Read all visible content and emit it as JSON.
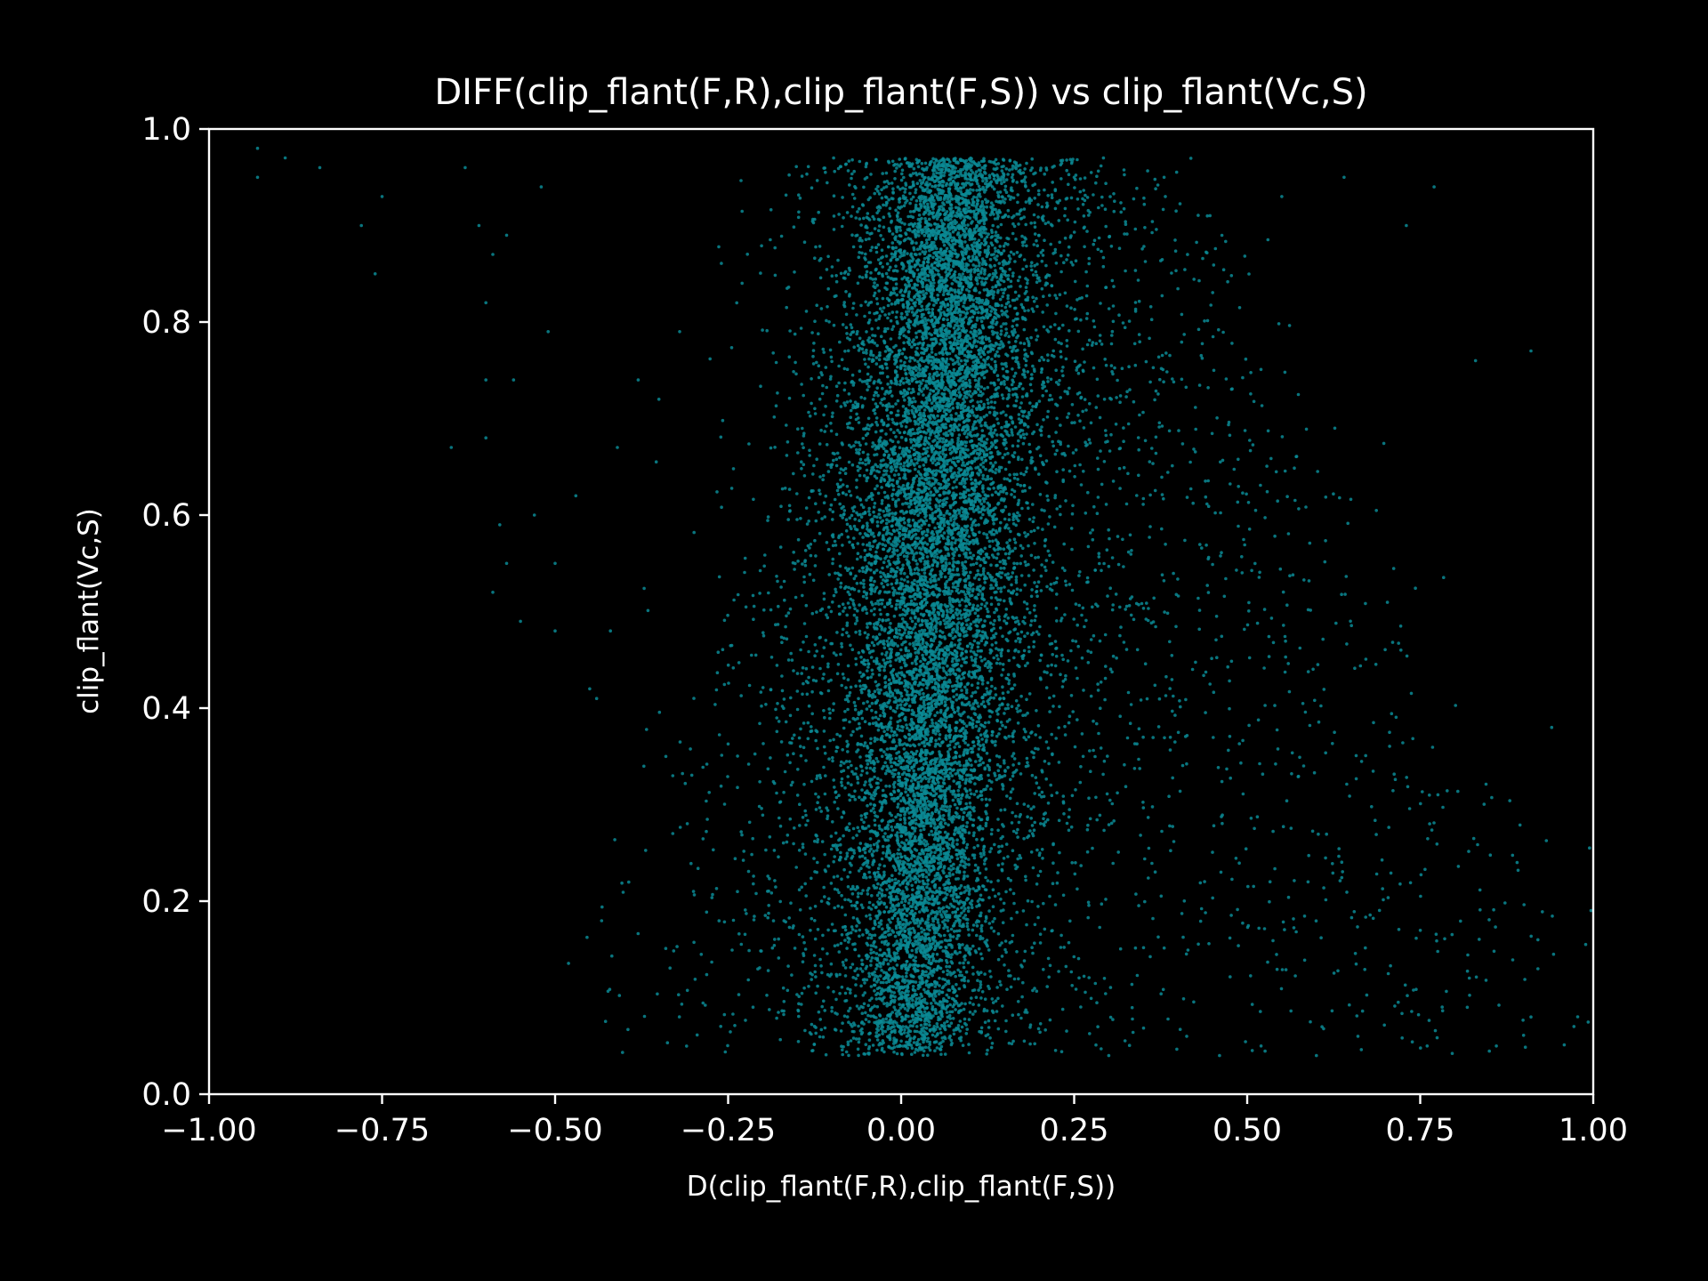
{
  "chart_data": {
    "type": "scatter",
    "title": "DIFF(clip_flant(F,R),clip_flant(F,S)) vs clip_flant(Vc,S)",
    "xlabel": "D(clip_flant(F,R),clip_flant(F,S))",
    "ylabel": "clip_flant(Vc,S)",
    "xlim": [
      -1.0,
      1.0
    ],
    "ylim": [
      0.0,
      1.0
    ],
    "xticks": [
      -1.0,
      -0.75,
      -0.5,
      -0.25,
      0.0,
      0.25,
      0.5,
      0.75,
      1.0
    ],
    "xtick_labels": [
      "−1.00",
      "−0.75",
      "−0.50",
      "−0.25",
      "0.00",
      "0.25",
      "0.50",
      "0.75",
      "1.00"
    ],
    "yticks": [
      0.0,
      0.2,
      0.4,
      0.6,
      0.8,
      1.0
    ],
    "ytick_labels": [
      "0.0",
      "0.2",
      "0.4",
      "0.6",
      "0.8",
      "1.0"
    ],
    "grid": false,
    "legend": "none",
    "colors": {
      "background": "#000000",
      "axes": "#ffffff",
      "points": "#0b8a94"
    },
    "series": [
      {
        "x": [
          -0.93,
          -0.93,
          -0.89,
          -0.84,
          -0.78,
          -0.76,
          -0.75,
          -0.65,
          -0.63,
          -0.61,
          -0.6,
          -0.59,
          -0.58,
          -0.57,
          -0.56,
          -0.55,
          -0.52,
          -0.51,
          -0.5,
          -0.45,
          -0.44,
          -0.38,
          -0.33,
          -0.3,
          -0.6,
          -0.57,
          -0.59,
          -0.6,
          -0.53,
          -0.5,
          -0.47,
          -0.42,
          -0.41,
          -0.35,
          -0.34,
          -0.33,
          -0.32,
          0.64,
          0.77,
          0.73,
          0.83,
          0.91,
          0.92,
          0.94,
          0.92,
          0.89,
          0.91,
          0.86,
          0.76,
          0.66,
          0.3,
          -0.17,
          -0.14,
          -0.06,
          0.46,
          0.52,
          0.55,
          0.6,
          0.38,
          0.25
        ],
        "y": [
          0.98,
          0.95,
          0.97,
          0.96,
          0.9,
          0.85,
          0.93,
          0.67,
          0.96,
          0.9,
          0.74,
          0.87,
          0.59,
          0.89,
          0.74,
          0.49,
          0.94,
          0.79,
          0.55,
          0.42,
          0.41,
          0.74,
          0.27,
          0.21,
          0.82,
          0.55,
          0.52,
          0.68,
          0.6,
          0.48,
          0.62,
          0.48,
          0.67,
          0.72,
          0.35,
          0.33,
          0.79,
          0.95,
          0.94,
          0.9,
          0.76,
          0.77,
          0.16,
          0.38,
          0.13,
          0.24,
          0.08,
          0.05,
          0.05,
          0.06,
          0.04,
          0.11,
          0.11,
          0.17,
          0.04,
          0.05,
          0.93,
          0.04,
          0.95,
          0.95
        ],
        "bulk_points": 14000,
        "color": "#0b8a94"
      }
    ]
  }
}
